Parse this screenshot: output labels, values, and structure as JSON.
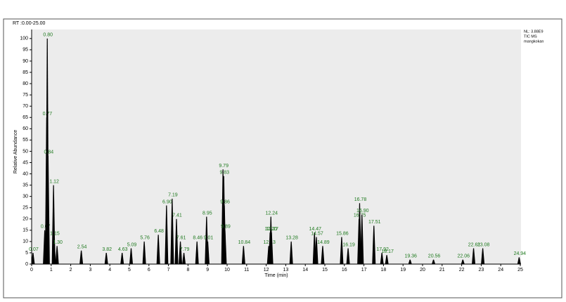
{
  "header": "RT :0.00-25.00",
  "info": [
    "NL: 3.88E9",
    "TIC MS",
    "mangkokan"
  ],
  "chart_data": {
    "type": "chromatogram",
    "x_label": "Time (min)",
    "y_label": "Relative Abundance",
    "x": [
      0.07,
      0.67,
      0.77,
      0.8,
      0.84,
      1.12,
      1.15,
      1.3,
      2.54,
      3.82,
      4.63,
      5.09,
      5.76,
      6.48,
      6.9,
      7.19,
      7.41,
      7.61,
      7.79,
      8.46,
      8.95,
      9.01,
      9.79,
      9.83,
      9.86,
      9.89,
      10.84,
      12.13,
      12.2,
      12.24,
      12.27,
      13.28,
      14.47,
      14.57,
      14.89,
      15.86,
      16.19,
      16.75,
      16.78,
      16.9,
      17.51,
      17.92,
      18.17,
      19.36,
      20.56,
      22.06,
      22.61,
      23.08,
      24.94
    ],
    "labels": [
      "0.07",
      "0.67",
      "0.77",
      "0.80",
      "0.84",
      "1.12",
      "1.15",
      "1.30",
      "2.54",
      "3.82",
      "4.63",
      "5.09",
      "5.76",
      "6.48",
      "6.90",
      "7.19",
      "7.41",
      "7.61",
      "7.79",
      "8.46",
      "8.95",
      "9.01",
      "9.79",
      "9.83",
      "9.86",
      "9.89",
      "10.84",
      "12.13",
      "12.20",
      "12.24",
      "12.27",
      "13.28",
      "14.47",
      "14.57",
      "14.89",
      "15.86",
      "16.19",
      "16.75",
      "16.78",
      "16.90",
      "17.51",
      "17.92",
      "18.17",
      "19.36",
      "20.56",
      "22.06",
      "22.61",
      "23.08",
      "24.94"
    ],
    "values": [
      5,
      15,
      65,
      100,
      48,
      35,
      12,
      8,
      6,
      5,
      5,
      7,
      10,
      13,
      26,
      29,
      20,
      10,
      5,
      10,
      21,
      10,
      42,
      39,
      26,
      15,
      8,
      8,
      14,
      21,
      14,
      10,
      14,
      12,
      8,
      12,
      7,
      20,
      27,
      22,
      17,
      5,
      4,
      2,
      2,
      2,
      7,
      7,
      3
    ],
    "color": "#000000",
    "label_color": "#1f7a1f",
    "xlim": [
      0,
      25
    ],
    "xticks": [
      0,
      1,
      2,
      3,
      4,
      5,
      6,
      7,
      8,
      9,
      10,
      11,
      12,
      13,
      14,
      15,
      16,
      17,
      18,
      19,
      20,
      21,
      22,
      23,
      24,
      25
    ],
    "ylim": [
      0,
      104
    ],
    "yticks": [
      0,
      5,
      10,
      15,
      20,
      25,
      30,
      35,
      40,
      45,
      50,
      55,
      60,
      65,
      70,
      75,
      80,
      85,
      90,
      95,
      100
    ]
  }
}
